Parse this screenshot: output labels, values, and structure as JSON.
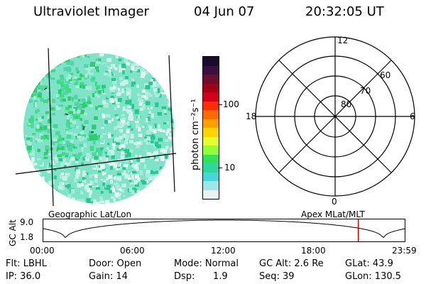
{
  "header": {
    "title": "Ultraviolet Imager",
    "date": "04 Jun 07",
    "time": "20:32:05 UT"
  },
  "colorbar": {
    "unit": "photon cm⁻²s⁻¹",
    "ticks": [
      "100",
      "10"
    ],
    "colors": [
      "#1a0a2e",
      "#3b0f3f",
      "#6b0f2e",
      "#a3001a",
      "#d4001a",
      "#ff2d00",
      "#ff6a00",
      "#ff9f00",
      "#ffd400",
      "#e4ff2e",
      "#8fff3a",
      "#32e05a",
      "#2ed6a0",
      "#46d6d6",
      "#9fe6e6",
      "#e8f2f2"
    ]
  },
  "polar": {
    "mlt_labels": [
      "12",
      "18",
      "6",
      "0"
    ],
    "lat_labels": [
      "60",
      "70",
      "80"
    ]
  },
  "orbit": {
    "ylabel": "GC Alt",
    "yticks": [
      "9.0",
      "1.8"
    ],
    "left_title": "Geographic Lat/Lon",
    "right_title": "Apex MLat/MLT",
    "xticks": [
      "00:00",
      "06:00",
      "12:00",
      "18:00",
      "23:59"
    ],
    "marker_color": "#cc0000",
    "marker_fraction": 0.87
  },
  "status": {
    "flt": "Flt: LBHL",
    "ip": "IP: 36.0",
    "door": "Door: Open",
    "gain": "Gain: 14",
    "mode": "Mode: Normal",
    "dsp_label": "Dsp:",
    "dsp_value": "1.9",
    "gc_alt": "GC Alt: 2.6 Re",
    "seq": "Seq: 39",
    "glat": "GLat: 43.9",
    "glon": "GLon: 130.5"
  }
}
